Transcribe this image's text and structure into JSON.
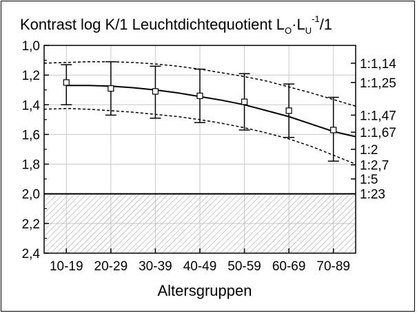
{
  "chart_data": {
    "type": "line",
    "title": {
      "main": "Kontrast log K/1 Leuchtdichtequotient L",
      "sub1": "O",
      "dot": "·L",
      "sub2": "U",
      "sup": "-1",
      "tail": "/1"
    },
    "xlabel": "Altersgruppen",
    "categories": [
      "10-19",
      "20-29",
      "30-39",
      "40-49",
      "50-59",
      "60-69",
      "70-89"
    ],
    "y_axis": {
      "ylim": [
        1.0,
        2.4
      ],
      "inverted": true,
      "ticks": [
        1.0,
        1.2,
        1.4,
        1.6,
        1.8,
        2.0,
        2.2,
        2.4
      ],
      "tick_labels": [
        "1,0",
        "1,2",
        "1,4",
        "1,6",
        "1,8",
        "2,0",
        "2,2",
        "2,4"
      ]
    },
    "right_axis_labels": [
      {
        "y": 1.12,
        "label": "1:1,14"
      },
      {
        "y": 1.25,
        "label": "1:1,25"
      },
      {
        "y": 1.47,
        "label": "1:1,47"
      },
      {
        "y": 1.585,
        "label": "1:1,67"
      },
      {
        "y": 1.7,
        "label": "1:2"
      },
      {
        "y": 1.805,
        "label": "1:2,7"
      },
      {
        "y": 1.9,
        "label": "1:5"
      },
      {
        "y": 2.0,
        "label": "1:23"
      }
    ],
    "threshold": 2.0,
    "hatched_region": [
      2.0,
      2.4
    ],
    "points": {
      "values": [
        1.25,
        1.29,
        1.31,
        1.34,
        1.38,
        1.44,
        1.57
      ],
      "err_low": [
        1.13,
        1.11,
        1.14,
        1.16,
        1.19,
        1.26,
        1.35
      ],
      "err_high": [
        1.4,
        1.47,
        1.49,
        1.52,
        1.57,
        1.62,
        1.78
      ]
    },
    "fit_curve": {
      "x": [
        1,
        1.5,
        2,
        2.5,
        3,
        3.5,
        4,
        4.5,
        5,
        5.5,
        6,
        6.5,
        7,
        7.5
      ],
      "y": [
        1.27,
        1.27,
        1.275,
        1.285,
        1.3,
        1.32,
        1.345,
        1.37,
        1.4,
        1.44,
        1.48,
        1.53,
        1.58,
        1.615
      ]
    },
    "upper_band": {
      "x": [
        0.5,
        1,
        1.5,
        2,
        2.5,
        3,
        3.5,
        4,
        4.5,
        5,
        5.5,
        6,
        6.5,
        7,
        7.5
      ],
      "y": [
        1.12,
        1.115,
        1.11,
        1.11,
        1.115,
        1.125,
        1.14,
        1.16,
        1.185,
        1.21,
        1.24,
        1.28,
        1.32,
        1.365,
        1.41
      ]
    },
    "lower_band": {
      "x": [
        0.5,
        1,
        1.5,
        2,
        2.5,
        3,
        3.5,
        4,
        4.5,
        5,
        5.5,
        6,
        6.5,
        7,
        7.5
      ],
      "y": [
        1.43,
        1.425,
        1.43,
        1.44,
        1.45,
        1.465,
        1.48,
        1.5,
        1.525,
        1.555,
        1.59,
        1.63,
        1.68,
        1.74,
        1.8
      ]
    },
    "x_range": [
      0.5,
      7.5
    ],
    "grid": true
  },
  "colors": {
    "line": "#000000",
    "grid": "#c8c8c8",
    "hatch": "#9a9a9a",
    "background": "#ffffff"
  }
}
